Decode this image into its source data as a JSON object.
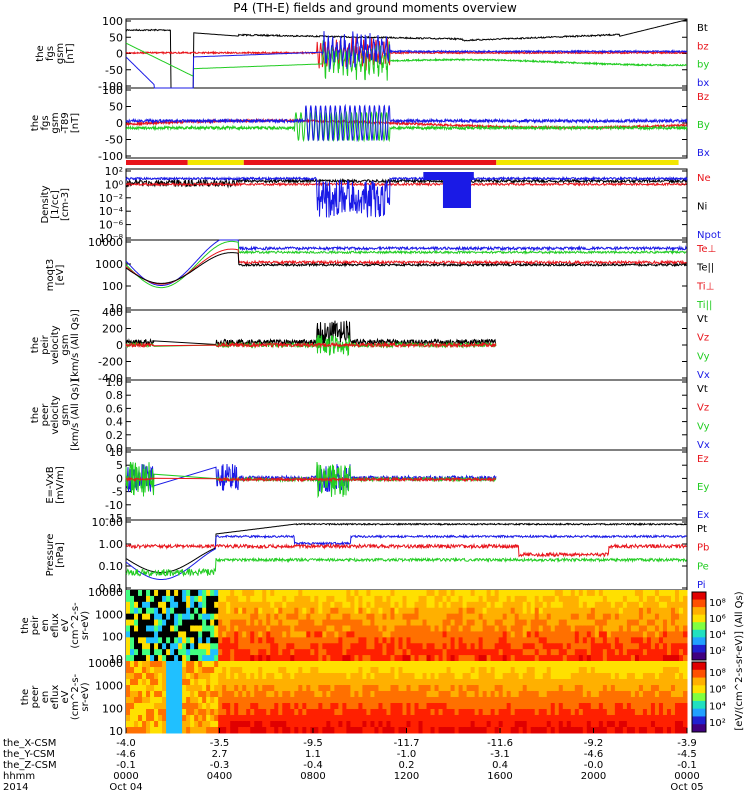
{
  "title": "P4 (TH-E) fields and ground moments overview",
  "colors": {
    "black": "#000000",
    "red": "#e8141b",
    "green": "#22cc22",
    "blue": "#1a1ae6",
    "yellow": "#f2e600"
  },
  "chart_data": [
    {
      "type": "line",
      "ylabel": [
        "the",
        "fgs",
        "gsm",
        "[nT]"
      ],
      "yticks": [
        "100",
        "50",
        "0",
        "-50",
        "-100"
      ],
      "ylim": [
        -100,
        100
      ],
      "series": [
        {
          "name": "Bt",
          "color": "black"
        },
        {
          "name": "bz",
          "color": "red"
        },
        {
          "name": "by",
          "color": "green"
        },
        {
          "name": "bx",
          "color": "blue"
        }
      ]
    },
    {
      "type": "line",
      "ylabel": [
        "the",
        "fgs",
        "gsm",
        "-T89",
        "[nT]"
      ],
      "yticks": [
        "100",
        "50",
        "0",
        "-50",
        "-100"
      ],
      "ylim": [
        -125,
        125
      ],
      "series": [
        {
          "name": "Bz",
          "color": "red"
        },
        {
          "name": "By",
          "color": "green"
        },
        {
          "name": "Bx",
          "color": "blue"
        }
      ]
    },
    {
      "type": "line",
      "ylabel": [
        "Density",
        "[1/cc]",
        "[cm-3]"
      ],
      "yticks": [
        "10²",
        "10⁰",
        "10⁻²",
        "10⁻⁴",
        "10⁻⁶",
        "10⁻⁸"
      ],
      "scale": "log",
      "series": [
        {
          "name": "Ne",
          "color": "red"
        },
        {
          "name": "Ni",
          "color": "black"
        },
        {
          "name": "Npot",
          "color": "blue"
        }
      ]
    },
    {
      "type": "line",
      "ylabel": [
        "moqt3",
        "[eV]"
      ],
      "yticks": [
        "10000",
        "1000",
        "100",
        "10"
      ],
      "scale": "log",
      "series": [
        {
          "name": "Te⊥",
          "color": "red"
        },
        {
          "name": "Te||",
          "color": "black"
        },
        {
          "name": "Ti⊥",
          "color": "red"
        },
        {
          "name": "Ti||",
          "color": "green"
        }
      ]
    },
    {
      "type": "line",
      "ylabel": [
        "the",
        "peir",
        "velocity",
        "gsm",
        "[km/s (All Qs)]"
      ],
      "yticks": [
        "400",
        "200",
        "0",
        "-200",
        "-400"
      ],
      "ylim": [
        -400,
        400
      ],
      "series": [
        {
          "name": "Vt",
          "color": "black"
        },
        {
          "name": "Vz",
          "color": "red"
        },
        {
          "name": "Vy",
          "color": "green"
        },
        {
          "name": "Vx",
          "color": "blue"
        }
      ]
    },
    {
      "type": "line",
      "ylabel": [
        "the",
        "peer",
        "velocity",
        "gsm",
        "[km/s (All Qs)]"
      ],
      "yticks": [
        "1.0",
        "0.8",
        "0.6",
        "0.4",
        "0.2",
        "0.0"
      ],
      "ylim": [
        0,
        1
      ],
      "series": [
        {
          "name": "Vt",
          "color": "black"
        },
        {
          "name": "Vz",
          "color": "red"
        },
        {
          "name": "Vy",
          "color": "green"
        },
        {
          "name": "Vx",
          "color": "blue"
        }
      ]
    },
    {
      "type": "line",
      "ylabel": [
        "E=-VxB",
        "[mV/m]"
      ],
      "yticks": [
        "10",
        "5",
        "0",
        "-5",
        "-10",
        "-15"
      ],
      "ylim": [
        -16,
        10
      ],
      "series": [
        {
          "name": "Ez",
          "color": "red"
        },
        {
          "name": "Ey",
          "color": "green"
        },
        {
          "name": "Ex",
          "color": "blue"
        }
      ]
    },
    {
      "type": "line",
      "ylabel": [
        "Pressure",
        "[nPa]"
      ],
      "yticks": [
        "10.00",
        "1.00",
        "0.10",
        "0.01"
      ],
      "scale": "log",
      "series": [
        {
          "name": "Pt",
          "color": "black"
        },
        {
          "name": "Pb",
          "color": "red"
        },
        {
          "name": "Pe",
          "color": "green"
        },
        {
          "name": "Pi",
          "color": "blue"
        }
      ]
    },
    {
      "type": "heatmap",
      "ylabel": [
        "the",
        "peir",
        "en",
        "eflux",
        "eV",
        "(cm^2-s-",
        "sr-eV)"
      ],
      "yticks": [
        "10000",
        "1000",
        "100",
        "10"
      ],
      "scale": "log"
    },
    {
      "type": "heatmap",
      "ylabel": [
        "the",
        "peer",
        "en",
        "eflux",
        "eV",
        "(cm^2-s-",
        "sr-eV)"
      ],
      "yticks": [
        "10000",
        "1000",
        "100",
        "10"
      ],
      "scale": "log"
    }
  ],
  "colorbar": {
    "label": "[eV/(cm^2-s-sr-eV)] (All Qs)",
    "upper_ticks": [
      "10⁸",
      "10⁶",
      "10⁴",
      "10²"
    ],
    "lower_ticks": [
      "10⁸",
      "10⁶",
      "10⁴",
      "10²"
    ]
  },
  "status_bar": [
    {
      "from": 0.0,
      "to": 0.11,
      "color": "red"
    },
    {
      "from": 0.11,
      "to": 0.21,
      "color": "yellow"
    },
    {
      "from": 0.21,
      "to": 0.66,
      "color": "red"
    },
    {
      "from": 0.66,
      "to": 0.985,
      "color": "yellow"
    }
  ],
  "x_axis": {
    "row_labels": [
      "the_X-CSM",
      "the_Y-CSM",
      "the_Z-CSM",
      "hhmm",
      "2014"
    ],
    "ticks": [
      {
        "pos": 0.0,
        "x": "-4.0",
        "y": "-4.6",
        "z": "-0.1",
        "hhmm": "0000",
        "date": "Oct 04"
      },
      {
        "pos": 0.1667,
        "x": "-3.5",
        "y": "2.7",
        "z": "-0.3",
        "hhmm": "0400",
        "date": ""
      },
      {
        "pos": 0.3333,
        "x": "-9.5",
        "y": "1.1",
        "z": "-0.4",
        "hhmm": "0800",
        "date": ""
      },
      {
        "pos": 0.5,
        "x": "-11.7",
        "y": "-1.0",
        "z": "0.2",
        "hhmm": "1200",
        "date": ""
      },
      {
        "pos": 0.6667,
        "x": "-11.6",
        "y": "-3.1",
        "z": "0.4",
        "hhmm": "1600",
        "date": ""
      },
      {
        "pos": 0.8333,
        "x": "-9.2",
        "y": "-4.6",
        "z": "-0.0",
        "hhmm": "2000",
        "date": ""
      },
      {
        "pos": 1.0,
        "x": "-3.9",
        "y": "-4.5",
        "z": "-0.1",
        "hhmm": "0000",
        "date": "Oct 05"
      }
    ]
  }
}
